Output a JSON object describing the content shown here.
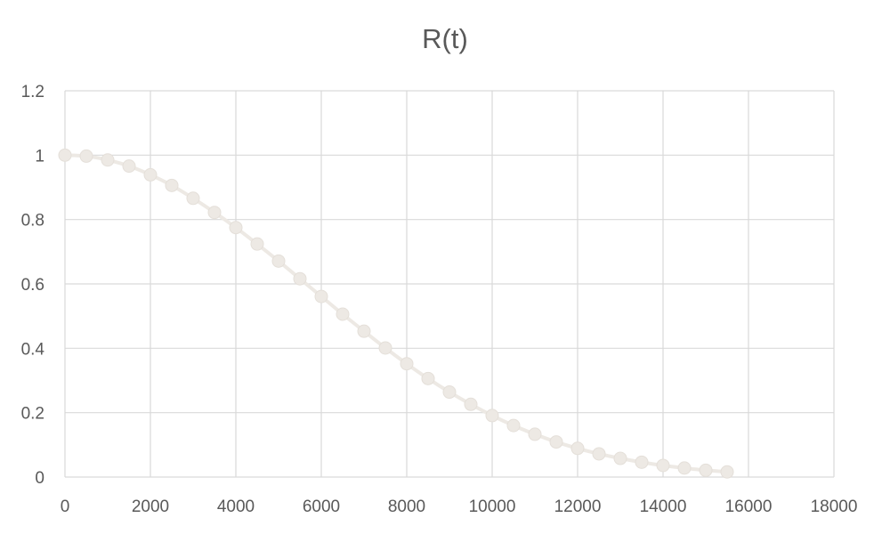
{
  "chart_data": {
    "type": "scatter",
    "title": "R(t)",
    "xlabel": "",
    "ylabel": "",
    "xlim": [
      0,
      18000
    ],
    "ylim": [
      0,
      1.2
    ],
    "x_ticks": [
      0,
      2000,
      4000,
      6000,
      8000,
      10000,
      12000,
      14000,
      16000,
      18000
    ],
    "y_ticks": [
      0,
      0.2,
      0.4,
      0.6,
      0.8,
      1,
      1.2
    ],
    "grid": true,
    "legend": "none",
    "series": [
      {
        "color": "#ede9e4",
        "line": "smooth",
        "marker": "circle",
        "x": [
          0,
          500,
          1000,
          1500,
          2000,
          2500,
          3000,
          3500,
          4000,
          4500,
          5000,
          5500,
          6000,
          6500,
          7000,
          7500,
          8000,
          8500,
          9000,
          9500,
          10000,
          10500,
          11000,
          11500,
          12000,
          12500,
          13000,
          13500,
          14000,
          14500,
          15000,
          15500
        ],
        "y": [
          1.0,
          0.997,
          0.985,
          0.966,
          0.939,
          0.906,
          0.866,
          0.822,
          0.775,
          0.724,
          0.671,
          0.616,
          0.561,
          0.506,
          0.453,
          0.401,
          0.352,
          0.306,
          0.264,
          0.226,
          0.191,
          0.16,
          0.133,
          0.109,
          0.089,
          0.072,
          0.058,
          0.046,
          0.036,
          0.028,
          0.021,
          0.016
        ]
      }
    ]
  }
}
